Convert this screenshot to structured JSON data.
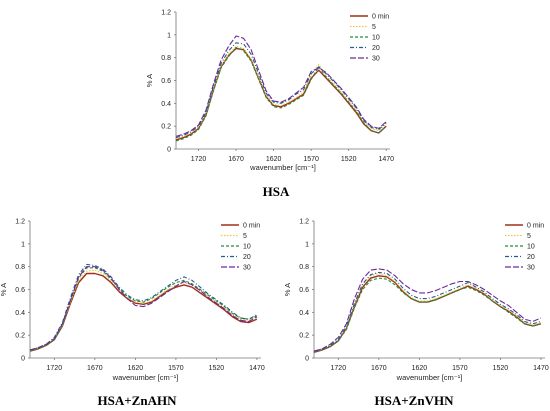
{
  "chart_data": [
    {
      "type": "line",
      "title": "HSA",
      "xlabel": "wavenumber [cm⁻¹]",
      "ylabel": "% A",
      "x_reversed": true,
      "xlim": [
        1750,
        1465
      ],
      "xticks": [
        1720,
        1670,
        1620,
        1570,
        1520,
        1470
      ],
      "ylim": [
        0,
        1.2
      ],
      "yticks": [
        "0",
        "0.2",
        "0.4",
        "0.6",
        "0.8",
        "1",
        "1.2"
      ],
      "legend_position": "top-right",
      "x": [
        1750,
        1740,
        1730,
        1720,
        1710,
        1700,
        1690,
        1680,
        1670,
        1660,
        1650,
        1640,
        1630,
        1620,
        1610,
        1600,
        1590,
        1580,
        1570,
        1560,
        1550,
        1540,
        1530,
        1520,
        1510,
        1500,
        1490,
        1480,
        1470
      ],
      "series": [
        {
          "name": "0 min",
          "color": "#a0301c",
          "dash": "",
          "values": [
            0.08,
            0.1,
            0.13,
            0.18,
            0.3,
            0.52,
            0.72,
            0.82,
            0.88,
            0.87,
            0.78,
            0.62,
            0.46,
            0.38,
            0.37,
            0.4,
            0.44,
            0.48,
            0.62,
            0.69,
            0.62,
            0.55,
            0.48,
            0.4,
            0.32,
            0.22,
            0.16,
            0.14,
            0.2
          ]
        },
        {
          "name": "5",
          "color": "#e8c840",
          "dash": "1.5,1.5",
          "values": [
            0.09,
            0.11,
            0.14,
            0.19,
            0.31,
            0.53,
            0.73,
            0.83,
            0.9,
            0.88,
            0.79,
            0.63,
            0.47,
            0.39,
            0.38,
            0.41,
            0.45,
            0.5,
            0.65,
            0.74,
            0.64,
            0.57,
            0.5,
            0.42,
            0.34,
            0.24,
            0.18,
            0.16,
            0.22
          ]
        },
        {
          "name": "10",
          "color": "#2a8a3a",
          "dash": "3,2",
          "values": [
            0.07,
            0.09,
            0.12,
            0.17,
            0.29,
            0.51,
            0.71,
            0.81,
            0.89,
            0.86,
            0.77,
            0.61,
            0.45,
            0.37,
            0.36,
            0.39,
            0.43,
            0.47,
            0.61,
            0.72,
            0.63,
            0.56,
            0.49,
            0.41,
            0.33,
            0.23,
            0.16,
            0.14,
            0.2
          ]
        },
        {
          "name": "20",
          "color": "#1f5f8a",
          "dash": "4,2,1,2",
          "values": [
            0.1,
            0.12,
            0.15,
            0.2,
            0.32,
            0.55,
            0.75,
            0.86,
            0.93,
            0.92,
            0.83,
            0.66,
            0.49,
            0.41,
            0.4,
            0.43,
            0.48,
            0.52,
            0.66,
            0.72,
            0.66,
            0.59,
            0.52,
            0.44,
            0.36,
            0.25,
            0.19,
            0.17,
            0.23
          ]
        },
        {
          "name": "30",
          "color": "#6a2a9a",
          "dash": "6,2",
          "values": [
            0.11,
            0.13,
            0.16,
            0.21,
            0.34,
            0.57,
            0.78,
            0.9,
            0.99,
            0.97,
            0.87,
            0.69,
            0.51,
            0.42,
            0.41,
            0.44,
            0.49,
            0.54,
            0.68,
            0.71,
            0.67,
            0.6,
            0.53,
            0.45,
            0.37,
            0.26,
            0.2,
            0.18,
            0.24
          ]
        }
      ]
    },
    {
      "type": "line",
      "title": "HSA+ZnAHN",
      "xlabel": "wavenumber [cm⁻¹]",
      "ylabel": "% A",
      "x_reversed": true,
      "xlim": [
        1750,
        1465
      ],
      "xticks": [
        1720,
        1670,
        1620,
        1570,
        1520,
        1470
      ],
      "ylim": [
        0,
        1.2
      ],
      "yticks": [
        "0",
        "0.2",
        "0.4",
        "0.6",
        "0.8",
        "1",
        "1.2"
      ],
      "legend_position": "top-right",
      "x": [
        1750,
        1740,
        1730,
        1720,
        1710,
        1700,
        1690,
        1680,
        1670,
        1660,
        1650,
        1640,
        1630,
        1620,
        1610,
        1600,
        1590,
        1580,
        1570,
        1560,
        1550,
        1540,
        1530,
        1520,
        1510,
        1500,
        1490,
        1480,
        1470
      ],
      "series": [
        {
          "name": "0 min",
          "color": "#a0301c",
          "dash": "",
          "values": [
            0.06,
            0.08,
            0.11,
            0.16,
            0.28,
            0.48,
            0.66,
            0.74,
            0.74,
            0.72,
            0.66,
            0.58,
            0.52,
            0.48,
            0.47,
            0.49,
            0.54,
            0.59,
            0.62,
            0.64,
            0.62,
            0.57,
            0.52,
            0.47,
            0.42,
            0.36,
            0.32,
            0.31,
            0.34
          ]
        },
        {
          "name": "5",
          "color": "#e8c840",
          "dash": "1.5,1.5",
          "values": [
            0.07,
            0.09,
            0.12,
            0.17,
            0.29,
            0.49,
            0.68,
            0.76,
            0.77,
            0.74,
            0.68,
            0.6,
            0.53,
            0.49,
            0.48,
            0.5,
            0.55,
            0.6,
            0.64,
            0.66,
            0.64,
            0.59,
            0.54,
            0.49,
            0.44,
            0.38,
            0.34,
            0.33,
            0.36
          ]
        },
        {
          "name": "10",
          "color": "#2a8a3a",
          "dash": "3,2",
          "values": [
            0.06,
            0.08,
            0.11,
            0.16,
            0.28,
            0.5,
            0.7,
            0.79,
            0.79,
            0.76,
            0.69,
            0.61,
            0.54,
            0.5,
            0.49,
            0.52,
            0.57,
            0.62,
            0.66,
            0.68,
            0.65,
            0.6,
            0.55,
            0.5,
            0.45,
            0.39,
            0.35,
            0.34,
            0.37
          ]
        },
        {
          "name": "20",
          "color": "#1f5f8a",
          "dash": "4,2,1,2",
          "values": [
            0.07,
            0.09,
            0.12,
            0.18,
            0.31,
            0.53,
            0.73,
            0.82,
            0.81,
            0.78,
            0.71,
            0.62,
            0.55,
            0.51,
            0.5,
            0.53,
            0.58,
            0.63,
            0.68,
            0.71,
            0.68,
            0.62,
            0.56,
            0.51,
            0.46,
            0.4,
            0.35,
            0.34,
            0.38
          ]
        },
        {
          "name": "30",
          "color": "#6a2a9a",
          "dash": "6,2",
          "values": [
            0.07,
            0.09,
            0.12,
            0.17,
            0.3,
            0.51,
            0.71,
            0.8,
            0.8,
            0.77,
            0.7,
            0.6,
            0.52,
            0.46,
            0.45,
            0.48,
            0.53,
            0.58,
            0.63,
            0.67,
            0.64,
            0.59,
            0.53,
            0.48,
            0.43,
            0.37,
            0.33,
            0.32,
            0.36
          ]
        }
      ]
    },
    {
      "type": "line",
      "title": "HSA+ZnVHN",
      "xlabel": "wavenumber [cm⁻¹]",
      "ylabel": "% A",
      "x_reversed": true,
      "xlim": [
        1750,
        1465
      ],
      "xticks": [
        1720,
        1670,
        1620,
        1570,
        1520,
        1470
      ],
      "ylim": [
        0,
        1.2
      ],
      "yticks": [
        "0",
        "0.2",
        "0.4",
        "0.6",
        "0.8",
        "1",
        "1.2"
      ],
      "legend_position": "top-right",
      "x": [
        1750,
        1740,
        1730,
        1720,
        1710,
        1700,
        1690,
        1680,
        1670,
        1660,
        1650,
        1640,
        1630,
        1620,
        1610,
        1600,
        1590,
        1580,
        1570,
        1560,
        1550,
        1540,
        1530,
        1520,
        1510,
        1500,
        1490,
        1480,
        1470
      ],
      "series": [
        {
          "name": "0 min",
          "color": "#a0301c",
          "dash": "",
          "values": [
            0.05,
            0.07,
            0.1,
            0.15,
            0.26,
            0.45,
            0.62,
            0.7,
            0.72,
            0.71,
            0.66,
            0.58,
            0.52,
            0.49,
            0.49,
            0.51,
            0.54,
            0.57,
            0.6,
            0.63,
            0.6,
            0.56,
            0.5,
            0.45,
            0.41,
            0.36,
            0.3,
            0.28,
            0.3
          ]
        },
        {
          "name": "5",
          "color": "#e8c840",
          "dash": "1.5,1.5",
          "values": [
            0.06,
            0.08,
            0.11,
            0.16,
            0.27,
            0.47,
            0.64,
            0.72,
            0.74,
            0.72,
            0.67,
            0.59,
            0.53,
            0.5,
            0.5,
            0.52,
            0.55,
            0.58,
            0.61,
            0.64,
            0.61,
            0.57,
            0.51,
            0.46,
            0.42,
            0.37,
            0.31,
            0.29,
            0.31
          ]
        },
        {
          "name": "10",
          "color": "#2a8a3a",
          "dash": "3,2",
          "values": [
            0.05,
            0.07,
            0.1,
            0.15,
            0.25,
            0.44,
            0.6,
            0.68,
            0.7,
            0.69,
            0.64,
            0.57,
            0.52,
            0.49,
            0.49,
            0.51,
            0.54,
            0.57,
            0.6,
            0.62,
            0.59,
            0.55,
            0.5,
            0.45,
            0.4,
            0.35,
            0.3,
            0.28,
            0.3
          ]
        },
        {
          "name": "20",
          "color": "#1f5f8a",
          "dash": "4,2,1,2",
          "values": [
            0.06,
            0.08,
            0.11,
            0.16,
            0.28,
            0.48,
            0.65,
            0.73,
            0.75,
            0.74,
            0.69,
            0.61,
            0.55,
            0.52,
            0.52,
            0.54,
            0.57,
            0.6,
            0.63,
            0.66,
            0.62,
            0.58,
            0.52,
            0.47,
            0.43,
            0.38,
            0.32,
            0.3,
            0.32
          ]
        },
        {
          "name": "30",
          "color": "#6a2a9a",
          "dash": "6,2",
          "values": [
            0.06,
            0.08,
            0.12,
            0.18,
            0.3,
            0.52,
            0.69,
            0.77,
            0.78,
            0.77,
            0.72,
            0.65,
            0.6,
            0.57,
            0.57,
            0.59,
            0.62,
            0.65,
            0.67,
            0.67,
            0.64,
            0.6,
            0.55,
            0.5,
            0.46,
            0.4,
            0.34,
            0.32,
            0.35
          ]
        }
      ]
    }
  ]
}
